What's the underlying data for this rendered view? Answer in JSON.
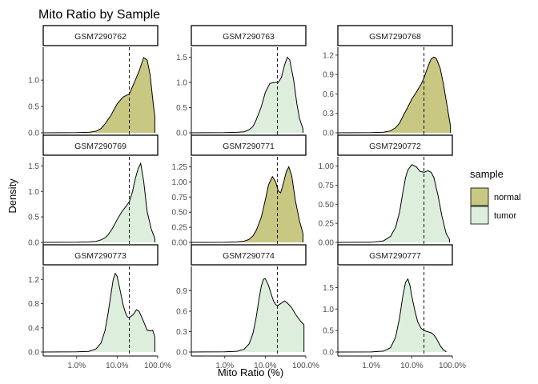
{
  "chart_data": {
    "type": "area",
    "title": "Mito Ratio by Sample",
    "xlabel": "Mito Ratio (%)",
    "ylabel": "Density",
    "x_scale": "log10",
    "x_range": [
      0.15,
      100
    ],
    "x_ticks": [
      1,
      10,
      100
    ],
    "x_tick_labels": [
      "1.0%",
      "10.0%",
      "100.0%"
    ],
    "threshold": 20,
    "legend": {
      "title": "sample",
      "position": "right",
      "entries": [
        {
          "label": "normal",
          "color": "#C8C882"
        },
        {
          "label": "tumor",
          "color": "#DDEEDD"
        }
      ]
    },
    "panels": [
      {
        "id": "GSM7290762",
        "sample": "normal",
        "ylim": [
          0,
          1.55
        ],
        "yticks": [
          0,
          0.5,
          1.0
        ],
        "ytick_labels": [
          "0.0",
          "0.5",
          "1.0"
        ],
        "x": [
          0.15,
          1,
          2,
          3,
          4,
          5,
          7,
          10,
          14,
          20,
          28,
          35,
          45,
          55,
          65,
          75,
          85
        ],
        "y": [
          0,
          0.003,
          0.01,
          0.03,
          0.08,
          0.17,
          0.33,
          0.55,
          0.68,
          0.74,
          1.0,
          1.18,
          1.43,
          1.38,
          1.1,
          0.65,
          0.3
        ]
      },
      {
        "id": "GSM7290763",
        "sample": "tumor",
        "ylim": [
          0,
          1.62
        ],
        "yticks": [
          0,
          0.5,
          1.0,
          1.5
        ],
        "ytick_labels": [
          "0.0",
          "0.5",
          "1.0",
          "1.5"
        ],
        "x": [
          0.15,
          1,
          2,
          3,
          4,
          5,
          6,
          8,
          10,
          13,
          17,
          21,
          25,
          30,
          35,
          40,
          50,
          60,
          70,
          85
        ],
        "y": [
          0,
          0.003,
          0.01,
          0.02,
          0.06,
          0.13,
          0.26,
          0.52,
          0.8,
          0.98,
          1.0,
          1.0,
          1.1,
          1.35,
          1.5,
          1.45,
          1.05,
          0.58,
          0.28,
          0.08
        ]
      },
      {
        "id": "GSM7290768",
        "sample": "normal",
        "ylim": [
          0,
          1.26
        ],
        "yticks": [
          0,
          0.3,
          0.6,
          0.9,
          1.2
        ],
        "ytick_labels": [
          "0.0",
          "0.3",
          "0.6",
          "0.9",
          "1.2"
        ],
        "x": [
          0.15,
          1,
          2,
          3,
          4,
          5,
          6,
          8,
          10,
          13,
          17,
          20,
          25,
          30,
          35,
          40,
          50,
          60,
          75,
          90
        ],
        "y": [
          0,
          0.003,
          0.01,
          0.03,
          0.08,
          0.15,
          0.25,
          0.4,
          0.52,
          0.63,
          0.75,
          0.85,
          1.02,
          1.14,
          1.17,
          1.15,
          1.0,
          0.76,
          0.4,
          0.1
        ]
      },
      {
        "id": "GSM7290769",
        "sample": "tumor",
        "ylim": [
          0,
          1.6
        ],
        "yticks": [
          0,
          0.5,
          1.0,
          1.5
        ],
        "ytick_labels": [
          "0.0",
          "0.5",
          "1.0",
          "1.5"
        ],
        "x": [
          0.15,
          1,
          2,
          3,
          4,
          5,
          6,
          8,
          10,
          13,
          17,
          20,
          24,
          28,
          33,
          38,
          45,
          55,
          70,
          85
        ],
        "y": [
          0,
          0.003,
          0.01,
          0.02,
          0.05,
          0.09,
          0.15,
          0.3,
          0.45,
          0.6,
          0.72,
          0.8,
          1.0,
          1.25,
          1.45,
          1.55,
          1.2,
          0.6,
          0.25,
          0.08
        ]
      },
      {
        "id": "GSM7290771",
        "sample": "normal",
        "ylim": [
          0,
          1.35
        ],
        "yticks": [
          0,
          0.25,
          0.5,
          0.75,
          1.0,
          1.25
        ],
        "ytick_labels": [
          "0.00",
          "0.25",
          "0.50",
          "0.75",
          "1.00",
          "1.25"
        ],
        "x": [
          0.15,
          1,
          2,
          3,
          4,
          5,
          6,
          8,
          10,
          12,
          15,
          18,
          21,
          24,
          28,
          33,
          38,
          45,
          55,
          70,
          85
        ],
        "y": [
          0,
          0.002,
          0.008,
          0.02,
          0.05,
          0.11,
          0.2,
          0.42,
          0.7,
          0.95,
          1.09,
          1.0,
          0.85,
          0.82,
          0.98,
          1.17,
          1.25,
          1.1,
          0.7,
          0.35,
          0.15
        ]
      },
      {
        "id": "GSM7290772",
        "sample": "tumor",
        "ylim": [
          0,
          1.07
        ],
        "yticks": [
          0,
          0.25,
          0.5,
          0.75,
          1.0
        ],
        "ytick_labels": [
          "0.00",
          "0.25",
          "0.50",
          "0.75",
          "1.00"
        ],
        "x": [
          0.15,
          1,
          2,
          3,
          4,
          5,
          6,
          7,
          8,
          10,
          13,
          16,
          20,
          25,
          30,
          35,
          45,
          55,
          70,
          85
        ],
        "y": [
          0,
          0.002,
          0.02,
          0.08,
          0.2,
          0.4,
          0.65,
          0.85,
          0.95,
          1.02,
          0.99,
          0.93,
          0.92,
          0.94,
          0.92,
          0.85,
          0.6,
          0.35,
          0.12,
          0.04
        ]
      },
      {
        "id": "GSM7290773",
        "sample": "tumor",
        "ylim": [
          0,
          1.35
        ],
        "yticks": [
          0,
          0.4,
          0.8,
          1.2
        ],
        "ytick_labels": [
          "0.0",
          "0.4",
          "0.8",
          "1.2"
        ],
        "x": [
          0.15,
          1,
          2,
          3,
          4,
          5,
          6,
          7,
          8,
          9,
          10,
          12,
          14,
          16,
          18,
          20,
          25,
          30,
          35,
          45,
          55,
          65,
          75,
          85
        ],
        "y": [
          0,
          0.003,
          0.01,
          0.05,
          0.15,
          0.35,
          0.65,
          0.95,
          1.2,
          1.3,
          1.25,
          1.0,
          0.78,
          0.65,
          0.58,
          0.57,
          0.62,
          0.7,
          0.67,
          0.5,
          0.36,
          0.35,
          0.36,
          0.25
        ]
      },
      {
        "id": "GSM7290774",
        "sample": "tumor",
        "ylim": [
          0,
          1.2
        ],
        "yticks": [
          0,
          0.3,
          0.6,
          0.9
        ],
        "ytick_labels": [
          "0.0",
          "0.3",
          "0.6",
          "0.9"
        ],
        "x": [
          0.15,
          1,
          2,
          3,
          4,
          5,
          6,
          7,
          8,
          9,
          10,
          12,
          14,
          16,
          18,
          20,
          25,
          30,
          35,
          45,
          55,
          65,
          75,
          90
        ],
        "y": [
          0,
          0.003,
          0.01,
          0.04,
          0.12,
          0.28,
          0.52,
          0.78,
          0.97,
          1.07,
          1.08,
          0.98,
          0.85,
          0.75,
          0.7,
          0.68,
          0.72,
          0.75,
          0.72,
          0.65,
          0.56,
          0.5,
          0.45,
          0.4
        ]
      },
      {
        "id": "GSM7290777",
        "sample": "tumor",
        "ylim": [
          0,
          1.9
        ],
        "yticks": [
          0,
          0.5,
          1.0,
          1.5
        ],
        "ytick_labels": [
          "0.0",
          "0.5",
          "1.0",
          "1.5"
        ],
        "x": [
          0.15,
          1,
          2,
          3,
          4,
          5,
          6,
          7,
          8,
          9,
          10,
          12,
          14,
          17,
          20,
          25,
          30,
          35,
          40,
          50,
          60,
          70
        ],
        "y": [
          0,
          0.003,
          0.02,
          0.1,
          0.35,
          0.8,
          1.3,
          1.62,
          1.7,
          1.55,
          1.3,
          0.95,
          0.7,
          0.55,
          0.5,
          0.47,
          0.45,
          0.4,
          0.32,
          0.15,
          0.05,
          0.01
        ]
      }
    ]
  }
}
